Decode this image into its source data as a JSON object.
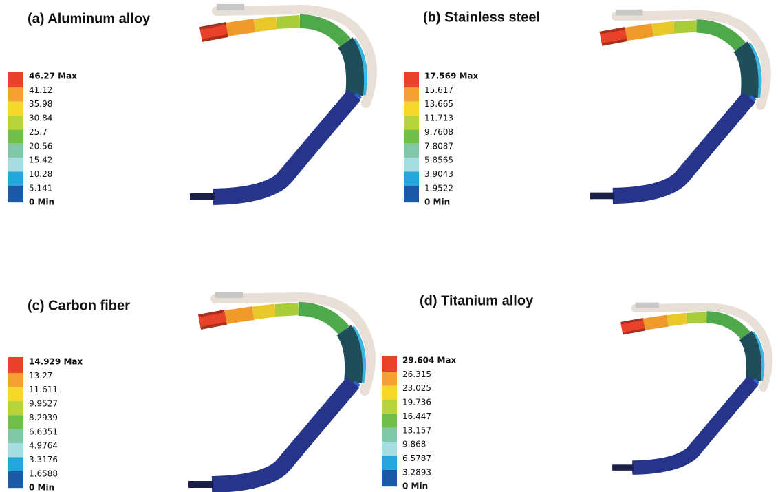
{
  "panels": [
    {
      "title": "(a) Aluminum alloy",
      "legend": [
        "46.27 Max",
        "41.12",
        "35.98",
        "30.84",
        "25.7",
        "20.56",
        "15.42",
        "10.28",
        "5.141",
        "0 Min"
      ]
    },
    {
      "title": "(b) Stainless steel",
      "legend": [
        "17.569 Max",
        "15.617",
        "13.665",
        "11.713",
        "9.7608",
        "7.8087",
        "5.8565",
        "3.9043",
        "1.9522",
        "0 Min"
      ]
    },
    {
      "title": "(c) Carbon fiber",
      "legend": [
        "14.929 Max",
        "13.27",
        "11.611",
        "9.9527",
        "8.2939",
        "6.6351",
        "4.9764",
        "3.3176",
        "1.6588",
        "0 Min"
      ]
    },
    {
      "title": "(d) Titanium alloy",
      "legend": [
        "29.604 Max",
        "26.315",
        "23.025",
        "19.736",
        "16.447",
        "13.157",
        "9.868",
        "6.5787",
        "3.2893",
        "0 Min"
      ]
    }
  ]
}
